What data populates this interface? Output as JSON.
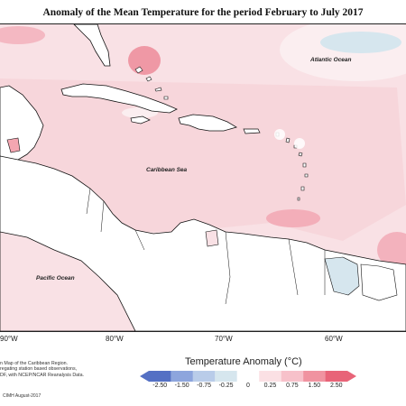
{
  "title": "Anomaly of the Mean Temperature for the period February to July 2017",
  "labels": {
    "atlantic": "Atlantic Ocean",
    "caribbean": "Caribbean Sea",
    "pacific": "Pacific Ocean"
  },
  "longitudes": [
    "90°W",
    "80°W",
    "70°W",
    "60°W"
  ],
  "legend": {
    "title": "Temperature Anomaly (°C)",
    "ticks": [
      "-2.50",
      "-1.50",
      "-0.75",
      "-0.25",
      "0",
      "0.25",
      "0.75",
      "1.50",
      "2.50"
    ],
    "colors": [
      "#5470c4",
      "#8da5dd",
      "#b9cce9",
      "#d6e6ee",
      "#ffffff",
      "#fbe0e4",
      "#f7c1ca",
      "#f093a0",
      "#e86478"
    ]
  },
  "credits": [
    "n Map of the Caribbean Region.",
    "regating station based observations,",
    "DF, with NCEP/NCAR Reanalysis Data."
  ],
  "credit_date": "CIMH August-2017"
}
